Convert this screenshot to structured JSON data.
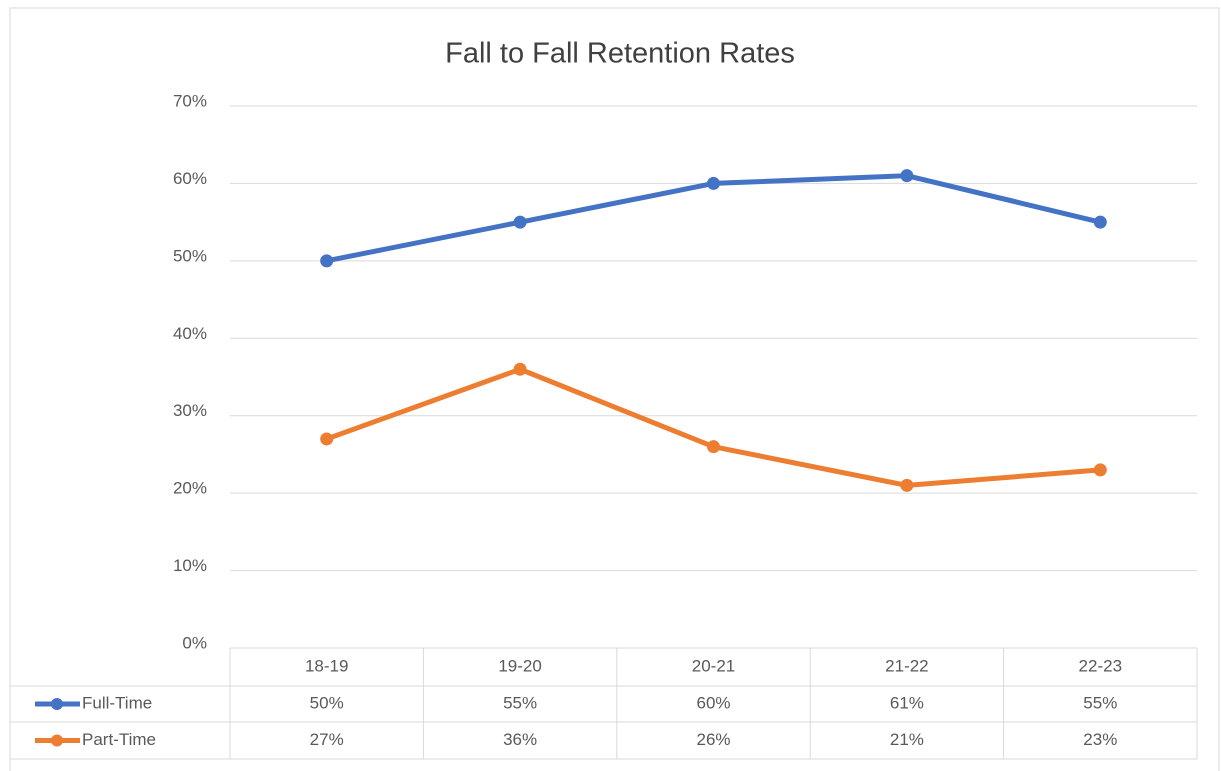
{
  "chart_data": {
    "type": "line",
    "title": "Fall to Fall Retention Rates",
    "categories": [
      "18-19",
      "19-20",
      "20-21",
      "21-22",
      "22-23"
    ],
    "series": [
      {
        "name": "Full-Time",
        "color": "#4472c4",
        "values": [
          50,
          55,
          60,
          61,
          55
        ],
        "value_labels": [
          "50%",
          "55%",
          "60%",
          "61%",
          "55%"
        ]
      },
      {
        "name": "Part-Time",
        "color": "#ed7d31",
        "values": [
          27,
          36,
          26,
          21,
          23
        ],
        "value_labels": [
          "27%",
          "36%",
          "26%",
          "21%",
          "23%"
        ]
      }
    ],
    "ylim": [
      0,
      70
    ],
    "yticks": [
      {
        "value": 0,
        "label": "0%"
      },
      {
        "value": 10,
        "label": "10%"
      },
      {
        "value": 20,
        "label": "20%"
      },
      {
        "value": 30,
        "label": "30%"
      },
      {
        "value": 40,
        "label": "40%"
      },
      {
        "value": 50,
        "label": "50%"
      },
      {
        "value": 60,
        "label": "60%"
      },
      {
        "value": 70,
        "label": "70%"
      }
    ],
    "grid": true
  }
}
